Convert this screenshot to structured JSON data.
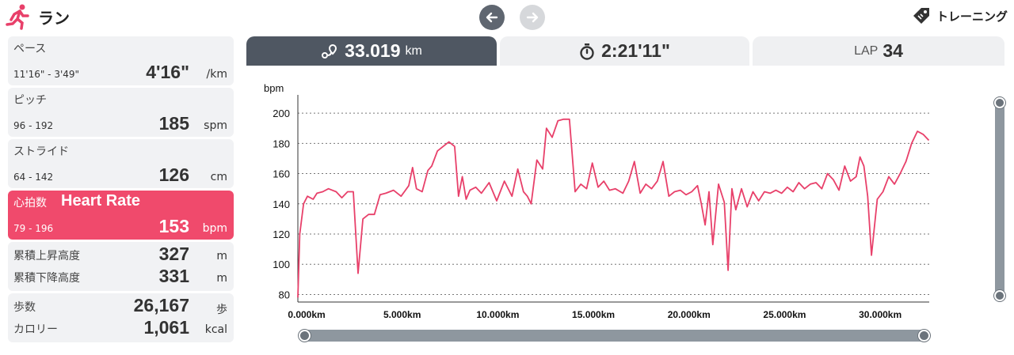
{
  "app": {
    "title": "ラン",
    "training_label": "トレーニング"
  },
  "colors": {
    "accent": "#f04a6c",
    "tab_active": "#4f5762",
    "card_bg": "#f1f2f4",
    "line": "#e8406a"
  },
  "icons": {
    "runner": "runner-icon",
    "back": "arrow-left-icon",
    "forward": "arrow-right-icon",
    "tag": "tag-icon",
    "route": "route-pin-icon",
    "stopwatch": "stopwatch-icon"
  },
  "stats": {
    "pace": {
      "name": "ペース",
      "range": "11'16\" - 3'49\"",
      "value": "4'16\"",
      "unit": "/km"
    },
    "pitch": {
      "name": "ピッチ",
      "range": "96 - 192",
      "value": "185",
      "unit": "spm"
    },
    "stride": {
      "name": "ストライド",
      "range": "64 - 142",
      "value": "126",
      "unit": "cm"
    },
    "heart_rate": {
      "name": "心拍数",
      "name_en": "Heart Rate",
      "range": "79 - 196",
      "value": "153",
      "unit": "bpm"
    },
    "ascent": {
      "name": "累積上昇高度",
      "value": "327",
      "unit": "m"
    },
    "descent": {
      "name": "累積下降高度",
      "value": "331",
      "unit": "m"
    },
    "steps": {
      "name": "歩数",
      "value": "26,167",
      "unit": "歩"
    },
    "calories": {
      "name": "カロリー",
      "value": "1,061",
      "unit": "kcal"
    }
  },
  "tabs": {
    "distance": {
      "value": "33.019",
      "unit": "km"
    },
    "time": {
      "value": "2:21'11\""
    },
    "lap": {
      "label": "LAP",
      "value": "34"
    }
  },
  "chart_data": {
    "type": "line",
    "ylabel": "bpm",
    "ylim": [
      75,
      210
    ],
    "yticks": [
      80,
      100,
      120,
      140,
      160,
      180,
      200
    ],
    "xlim": [
      0,
      33.019
    ],
    "xticks": [
      0,
      5,
      10,
      15,
      20,
      25,
      30
    ],
    "xtick_labels": [
      "0.000km",
      "5.000km",
      "10.000km",
      "15.000km",
      "20.000km",
      "25.000km",
      "30.000km"
    ],
    "grid": "horizontal-dashed",
    "series": [
      {
        "x": [
          0,
          0.1,
          0.3,
          0.5,
          0.8,
          1.0,
          1.3,
          1.6,
          2.0,
          2.3,
          2.6,
          2.9,
          3.15,
          3.4,
          3.7,
          4.0,
          4.3,
          4.6,
          5.0,
          5.4,
          5.8,
          6.0,
          6.2,
          6.5,
          6.8,
          7.0,
          7.3,
          7.6,
          7.9,
          8.2,
          8.4,
          8.6,
          8.8,
          9.0,
          9.3,
          9.6,
          10.0,
          10.4,
          10.8,
          11.2,
          11.5,
          11.8,
          12.0,
          12.2,
          12.5,
          12.8,
          13.0,
          13.3,
          13.6,
          13.9,
          14.2,
          14.5,
          14.8,
          15.1,
          15.4,
          15.7,
          16.0,
          16.3,
          16.6,
          17.0,
          17.3,
          17.6,
          17.9,
          18.2,
          18.5,
          18.8,
          19.1,
          19.4,
          19.7,
          20.0,
          20.3,
          20.6,
          20.9,
          21.1,
          21.3,
          21.5,
          21.7,
          22.0,
          22.3,
          22.5,
          22.7,
          22.9,
          23.2,
          23.5,
          23.8,
          24.1,
          24.4,
          24.7,
          25.0,
          25.3,
          25.6,
          25.9,
          26.2,
          26.5,
          26.8,
          27.1,
          27.4,
          27.7,
          28.0,
          28.3,
          28.6,
          28.9,
          29.2,
          29.4,
          29.6,
          29.8,
          30.0,
          30.3,
          30.6,
          30.9,
          31.2,
          31.5,
          31.8,
          32.1,
          32.4,
          32.7,
          33.0
        ],
        "y": [
          78,
          120,
          140,
          145,
          143,
          147,
          148,
          150,
          148,
          144,
          148,
          148,
          94,
          130,
          133,
          133,
          146,
          147,
          149,
          145,
          152,
          164,
          150,
          148,
          162,
          165,
          175,
          178,
          181,
          178,
          145,
          158,
          143,
          149,
          151,
          147,
          154,
          142,
          155,
          145,
          163,
          148,
          145,
          140,
          169,
          163,
          190,
          184,
          195,
          196,
          196,
          148,
          153,
          150,
          167,
          151,
          155,
          149,
          150,
          147,
          155,
          168,
          147,
          153,
          150,
          155,
          168,
          145,
          148,
          149,
          146,
          148,
          152,
          140,
          126,
          148,
          113,
          153,
          141,
          96,
          150,
          136,
          150,
          138,
          148,
          142,
          148,
          147,
          149,
          147,
          151,
          148,
          154,
          150,
          153,
          154,
          150,
          160,
          156,
          149,
          165,
          155,
          158,
          171,
          165,
          145,
          106,
          143,
          148,
          158,
          153,
          160,
          168,
          180,
          188,
          186,
          182
        ]
      }
    ]
  }
}
